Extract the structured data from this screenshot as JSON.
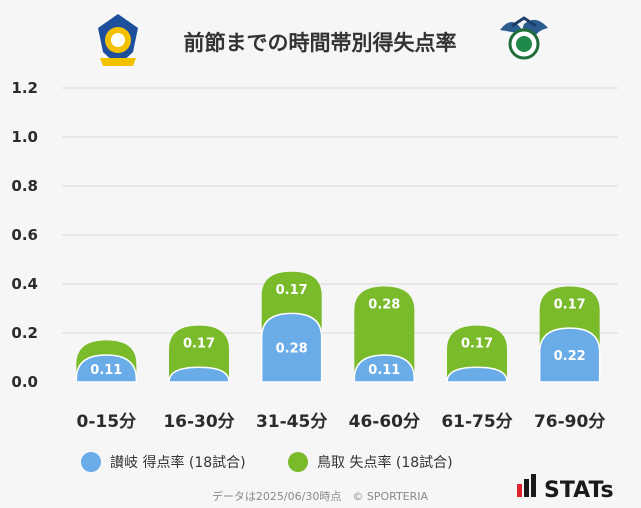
{
  "chart_data": {
    "type": "bar",
    "title": "前節までの時間帯別得失点率",
    "categories": [
      "0-15分",
      "16-30分",
      "31-45分",
      "46-60分",
      "61-75分",
      "76-90分"
    ],
    "series": [
      {
        "name": "讃岐 得点率 (18試合)",
        "color": "#6aace8",
        "values": [
          0.11,
          0.06,
          0.28,
          0.11,
          0.06,
          0.22
        ],
        "labels": [
          "0.11",
          "",
          "0.28",
          "0.11",
          "",
          "0.22"
        ]
      },
      {
        "name": "鳥取 失点率 (18試合)",
        "color": "#79bb2a",
        "values": [
          0.06,
          0.17,
          0.17,
          0.28,
          0.17,
          0.17
        ],
        "labels": [
          "",
          "0.17",
          "0.17",
          "0.28",
          "0.17",
          "0.17"
        ]
      }
    ],
    "yticks": [
      "0.0",
      "0.2",
      "0.4",
      "0.6",
      "0.8",
      "1.0",
      "1.2"
    ],
    "ylim": [
      0,
      1.2
    ],
    "grid": true,
    "legend_position": "bottom-left"
  },
  "footer": "データは2025/06/30時点　© SPORTERIA",
  "brand": "STATs",
  "colors": {
    "grid": "#e2e2e2",
    "background": "#f6f6f6"
  }
}
